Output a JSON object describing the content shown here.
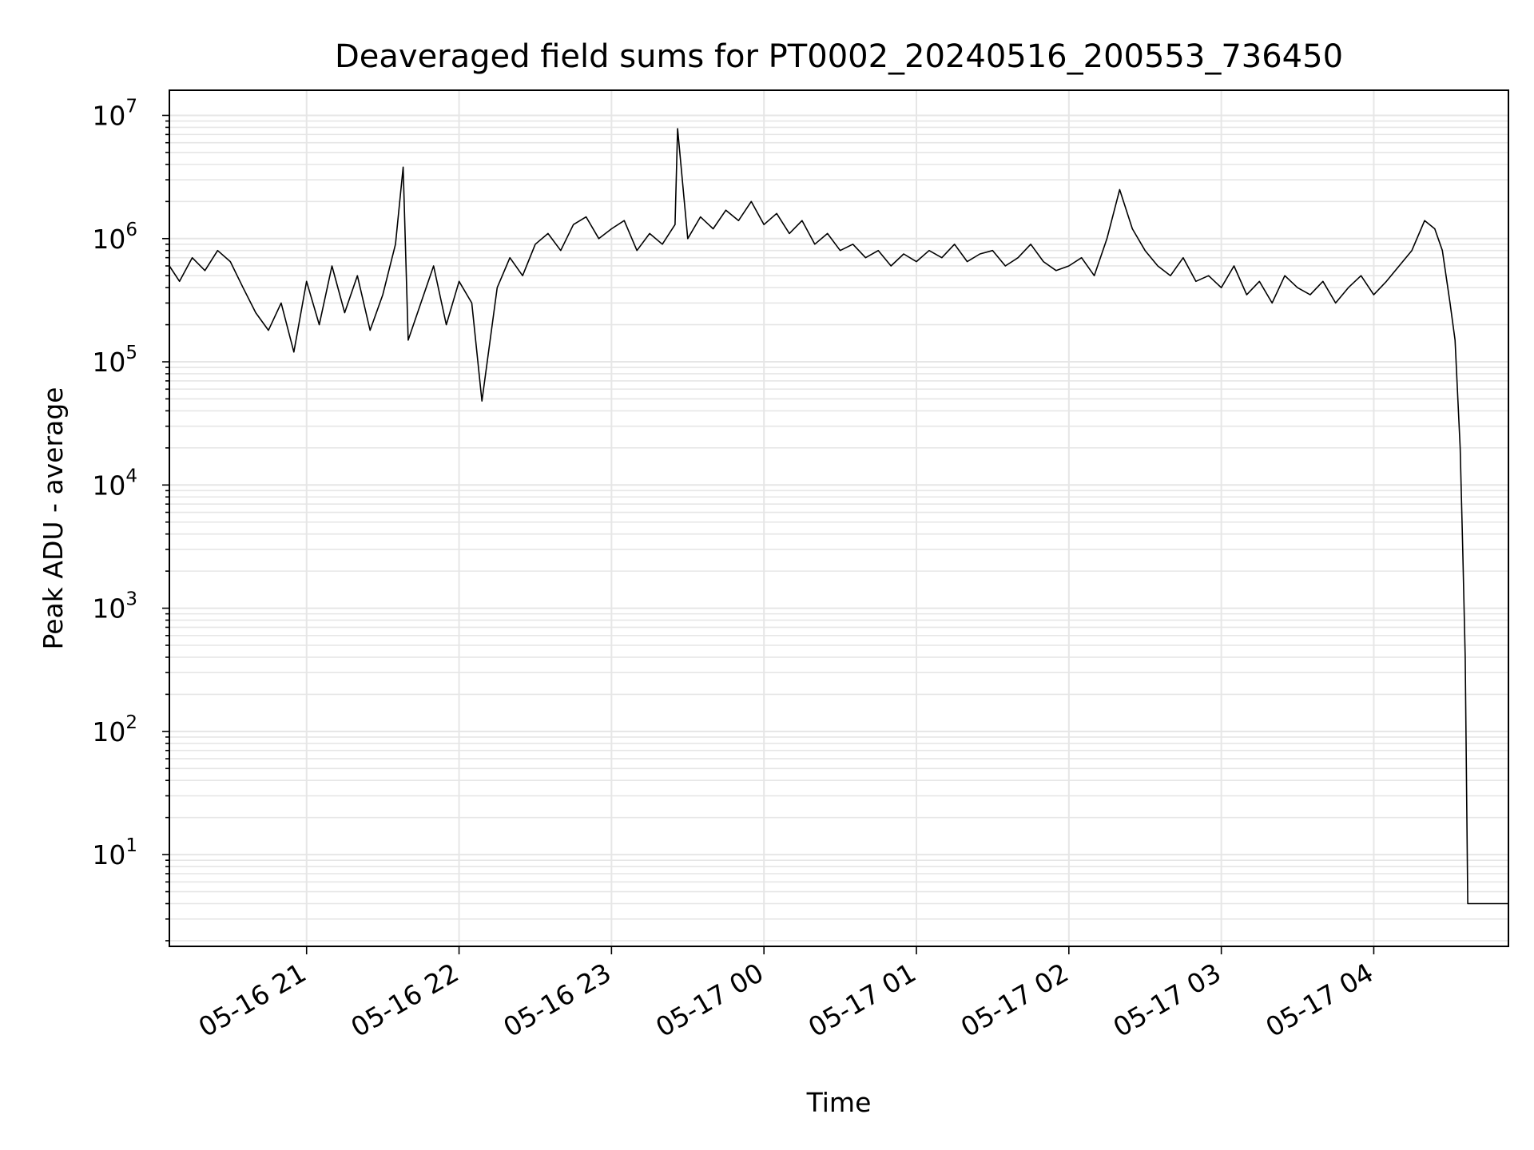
{
  "chart_data": {
    "type": "line",
    "title": "Deaveraged field sums for PT0002_20240516_200553_736450",
    "xlabel": "Time",
    "ylabel": "Peak ADU - average",
    "yscale": "log",
    "ylim": [
      1.8,
      16000000
    ],
    "xlim": [
      "05-16 20:06",
      "05-17 04:53"
    ],
    "grid": true,
    "x_ticks": [
      "05-16 21",
      "05-16 22",
      "05-16 23",
      "05-17 00",
      "05-17 01",
      "05-17 02",
      "05-17 03",
      "05-17 04"
    ],
    "y_ticks": [
      {
        "base": "10",
        "exp": "1"
      },
      {
        "base": "10",
        "exp": "2"
      },
      {
        "base": "10",
        "exp": "3"
      },
      {
        "base": "10",
        "exp": "4"
      },
      {
        "base": "10",
        "exp": "5"
      },
      {
        "base": "10",
        "exp": "6"
      },
      {
        "base": "10",
        "exp": "7"
      }
    ],
    "series": [
      {
        "color": "#000000",
        "points": [
          [
            "05-16 20:06",
            600000
          ],
          [
            "05-16 20:10",
            450000
          ],
          [
            "05-16 20:15",
            700000
          ],
          [
            "05-16 20:20",
            550000
          ],
          [
            "05-16 20:25",
            800000
          ],
          [
            "05-16 20:30",
            650000
          ],
          [
            "05-16 20:35",
            400000
          ],
          [
            "05-16 20:40",
            250000
          ],
          [
            "05-16 20:45",
            180000
          ],
          [
            "05-16 20:50",
            300000
          ],
          [
            "05-16 20:55",
            120000
          ],
          [
            "05-16 21:00",
            450000
          ],
          [
            "05-16 21:05",
            200000
          ],
          [
            "05-16 21:10",
            600000
          ],
          [
            "05-16 21:15",
            250000
          ],
          [
            "05-16 21:20",
            500000
          ],
          [
            "05-16 21:25",
            180000
          ],
          [
            "05-16 21:30",
            350000
          ],
          [
            "05-16 21:35",
            900000
          ],
          [
            "05-16 21:38",
            3800000
          ],
          [
            "05-16 21:40",
            150000
          ],
          [
            "05-16 21:45",
            300000
          ],
          [
            "05-16 21:50",
            600000
          ],
          [
            "05-16 21:55",
            200000
          ],
          [
            "05-16 22:00",
            450000
          ],
          [
            "05-16 22:05",
            300000
          ],
          [
            "05-16 22:09",
            48000
          ],
          [
            "05-16 22:15",
            400000
          ],
          [
            "05-16 22:20",
            700000
          ],
          [
            "05-16 22:25",
            500000
          ],
          [
            "05-16 22:30",
            900000
          ],
          [
            "05-16 22:35",
            1100000
          ],
          [
            "05-16 22:40",
            800000
          ],
          [
            "05-16 22:45",
            1300000
          ],
          [
            "05-16 22:50",
            1500000
          ],
          [
            "05-16 22:55",
            1000000
          ],
          [
            "05-16 23:00",
            1200000
          ],
          [
            "05-16 23:05",
            1400000
          ],
          [
            "05-16 23:10",
            800000
          ],
          [
            "05-16 23:15",
            1100000
          ],
          [
            "05-16 23:20",
            900000
          ],
          [
            "05-16 23:25",
            1300000
          ],
          [
            "05-16 23:26",
            7800000
          ],
          [
            "05-16 23:30",
            1000000
          ],
          [
            "05-16 23:35",
            1500000
          ],
          [
            "05-16 23:40",
            1200000
          ],
          [
            "05-16 23:45",
            1700000
          ],
          [
            "05-16 23:50",
            1400000
          ],
          [
            "05-16 23:55",
            2000000
          ],
          [
            "05-17 00:00",
            1300000
          ],
          [
            "05-17 00:05",
            1600000
          ],
          [
            "05-17 00:10",
            1100000
          ],
          [
            "05-17 00:15",
            1400000
          ],
          [
            "05-17 00:20",
            900000
          ],
          [
            "05-17 00:25",
            1100000
          ],
          [
            "05-17 00:30",
            800000
          ],
          [
            "05-17 00:35",
            900000
          ],
          [
            "05-17 00:40",
            700000
          ],
          [
            "05-17 00:45",
            800000
          ],
          [
            "05-17 00:50",
            600000
          ],
          [
            "05-17 00:55",
            750000
          ],
          [
            "05-17 01:00",
            650000
          ],
          [
            "05-17 01:05",
            800000
          ],
          [
            "05-17 01:10",
            700000
          ],
          [
            "05-17 01:15",
            900000
          ],
          [
            "05-17 01:20",
            650000
          ],
          [
            "05-17 01:25",
            750000
          ],
          [
            "05-17 01:30",
            800000
          ],
          [
            "05-17 01:35",
            600000
          ],
          [
            "05-17 01:40",
            700000
          ],
          [
            "05-17 01:45",
            900000
          ],
          [
            "05-17 01:50",
            650000
          ],
          [
            "05-17 01:55",
            550000
          ],
          [
            "05-17 02:00",
            600000
          ],
          [
            "05-17 02:05",
            700000
          ],
          [
            "05-17 02:10",
            500000
          ],
          [
            "05-17 02:15",
            1000000
          ],
          [
            "05-17 02:20",
            2500000
          ],
          [
            "05-17 02:25",
            1200000
          ],
          [
            "05-17 02:30",
            800000
          ],
          [
            "05-17 02:35",
            600000
          ],
          [
            "05-17 02:40",
            500000
          ],
          [
            "05-17 02:45",
            700000
          ],
          [
            "05-17 02:50",
            450000
          ],
          [
            "05-17 02:55",
            500000
          ],
          [
            "05-17 03:00",
            400000
          ],
          [
            "05-17 03:05",
            600000
          ],
          [
            "05-17 03:10",
            350000
          ],
          [
            "05-17 03:15",
            450000
          ],
          [
            "05-17 03:20",
            300000
          ],
          [
            "05-17 03:25",
            500000
          ],
          [
            "05-17 03:30",
            400000
          ],
          [
            "05-17 03:35",
            350000
          ],
          [
            "05-17 03:40",
            450000
          ],
          [
            "05-17 03:45",
            300000
          ],
          [
            "05-17 03:50",
            400000
          ],
          [
            "05-17 03:55",
            500000
          ],
          [
            "05-17 04:00",
            350000
          ],
          [
            "05-17 04:05",
            450000
          ],
          [
            "05-17 04:10",
            600000
          ],
          [
            "05-17 04:15",
            800000
          ],
          [
            "05-17 04:20",
            1400000
          ],
          [
            "05-17 04:24",
            1200000
          ],
          [
            "05-17 04:27",
            800000
          ],
          [
            "05-17 04:30",
            300000
          ],
          [
            "05-17 04:32",
            150000
          ],
          [
            "05-17 04:34",
            20000
          ],
          [
            "05-17 04:35",
            3000
          ],
          [
            "05-17 04:36",
            400
          ],
          [
            "05-17 04:37",
            4
          ],
          [
            "05-17 04:53",
            4
          ]
        ]
      }
    ]
  }
}
